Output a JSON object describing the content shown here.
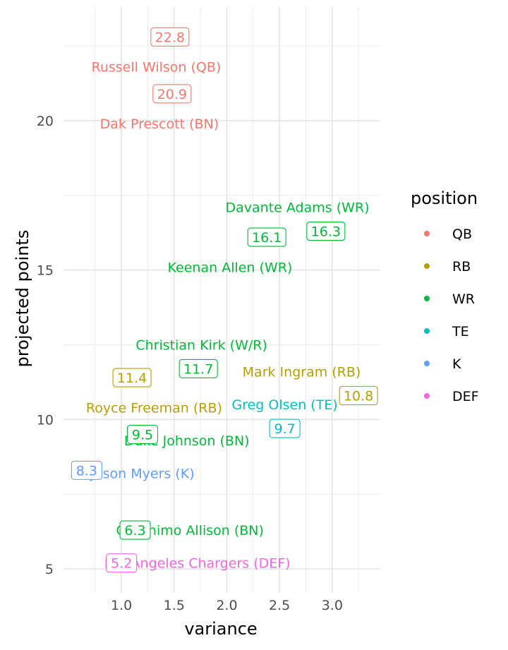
{
  "chart_data": {
    "type": "scatter",
    "title": "",
    "xlabel": "variance",
    "ylabel": "projected points",
    "xlim": [
      0.45,
      3.45
    ],
    "ylim": [
      4.2,
      23.8
    ],
    "x_ticks": [
      1.0,
      1.5,
      2.0,
      2.5,
      3.0
    ],
    "x_tick_labels": [
      "1.0",
      "1.5",
      "2.0",
      "2.5",
      "3.0"
    ],
    "y_ticks": [
      5,
      10,
      15,
      20
    ],
    "y_tick_labels": [
      "5",
      "10",
      "15",
      "20"
    ],
    "grid": true,
    "legend": {
      "title": "position",
      "placement": "right",
      "entries": [
        {
          "name": "QB",
          "color": "#F8766D"
        },
        {
          "name": "RB",
          "color": "#B79F00"
        },
        {
          "name": "WR",
          "color": "#00BA38"
        },
        {
          "name": "TE",
          "color": "#00BFC4"
        },
        {
          "name": "K",
          "color": "#619CFF"
        },
        {
          "name": "DEF",
          "color": "#F564E3"
        }
      ]
    },
    "points": [
      {
        "player": "Russell Wilson (QB)",
        "position": "QB",
        "value_label": "22.8",
        "label_x": 1.33,
        "label_y": 21.8,
        "value_x": 1.46,
        "value_y": 22.8
      },
      {
        "player": "Dak Prescott (BN)",
        "position": "QB",
        "value_label": "20.9",
        "label_x": 1.36,
        "label_y": 19.9,
        "value_x": 1.48,
        "value_y": 20.9
      },
      {
        "player": "Davante Adams (WR)",
        "position": "WR",
        "value_label": "16.3",
        "label_x": 2.67,
        "label_y": 17.1,
        "value_x": 2.94,
        "value_y": 16.3
      },
      {
        "player": "Keenan Allen (WR)",
        "position": "WR",
        "value_label": "16.1",
        "label_x": 2.03,
        "label_y": 15.1,
        "value_x": 2.38,
        "value_y": 16.1
      },
      {
        "player": "Christian Kirk (W/R)",
        "position": "WR",
        "value_label": "11.7",
        "label_x": 1.76,
        "label_y": 12.5,
        "value_x": 1.73,
        "value_y": 11.7
      },
      {
        "player": "Mark Ingram (RB)",
        "position": "RB",
        "value_label": "10.8",
        "label_x": 2.71,
        "label_y": 11.6,
        "value_x": 3.25,
        "value_y": 10.8
      },
      {
        "player": "Royce Freeman (RB)",
        "position": "RB",
        "value_label": "11.4",
        "label_x": 1.31,
        "label_y": 10.4,
        "value_x": 1.1,
        "value_y": 11.4
      },
      {
        "player": "Greg Olsen (TE)",
        "position": "TE",
        "value_label": "9.7",
        "label_x": 2.55,
        "label_y": 10.5,
        "value_x": 2.55,
        "value_y": 9.7
      },
      {
        "player": "Duke Johnson (BN)",
        "position": "WR",
        "value_label": "9.5",
        "label_x": 1.62,
        "label_y": 9.3,
        "value_x": 1.2,
        "value_y": 9.5
      },
      {
        "player": "Jason Myers (K)",
        "position": "K",
        "value_label": "8.3",
        "label_x": 1.2,
        "label_y": 8.2,
        "value_x": 0.67,
        "value_y": 8.3
      },
      {
        "player": "Geronimo Allison (BN)",
        "position": "WR",
        "value_label": "6.3",
        "label_x": 1.65,
        "label_y": 6.3,
        "value_x": 1.13,
        "value_y": 6.3
      },
      {
        "player": "Los Angeles Chargers (DEF)",
        "position": "DEF",
        "value_label": "5.2",
        "label_x": 1.72,
        "label_y": 5.2,
        "value_x": 1.0,
        "value_y": 5.2
      }
    ]
  }
}
